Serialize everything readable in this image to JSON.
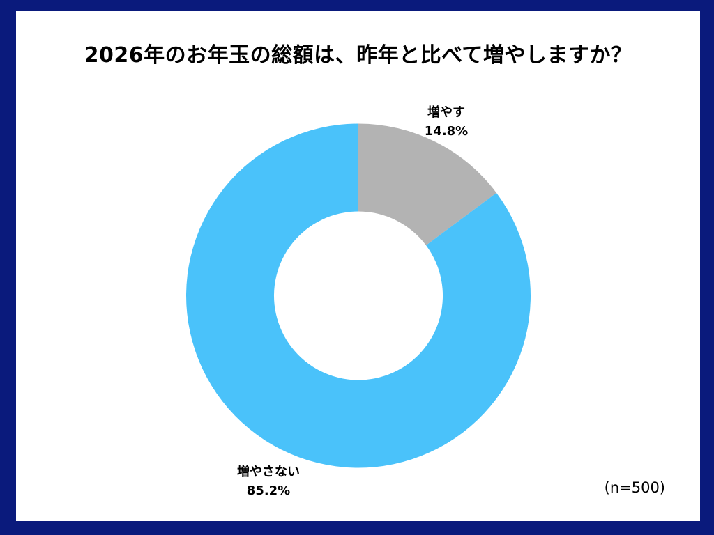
{
  "title": "2026年のお年玉の総額は、昨年と比べて増やしますか？",
  "sample_note": "(n=500)",
  "colors": {
    "frame": "#0A1A7C",
    "canvas": "#FFFFFF",
    "text": "#000000"
  },
  "chart_data": {
    "type": "pie",
    "subtype": "donut",
    "title": "2026年のお年玉の総額は、昨年と比べて増やしますか？",
    "categories": [
      "増やす",
      "増やさない"
    ],
    "values": [
      14.8,
      85.2
    ],
    "value_labels": [
      "14.8%",
      "85.2%"
    ],
    "unit": "%",
    "colors": [
      "#B3B3B3",
      "#4AC2FA"
    ],
    "start_angle_deg": 0,
    "direction": "clockwise",
    "inner_radius_ratio": 0.49,
    "legend": "none",
    "sample_size": "n=500"
  }
}
